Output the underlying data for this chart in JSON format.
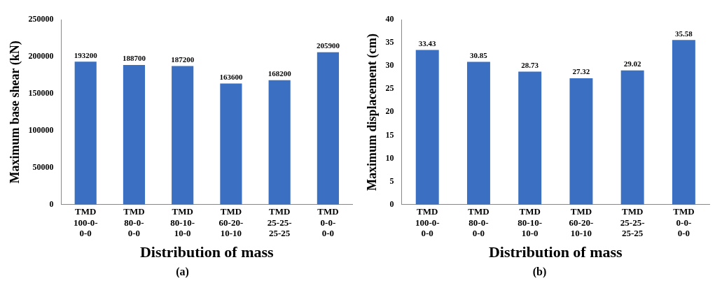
{
  "chart_data": [
    {
      "type": "bar",
      "xlabel": "Distribution of mass",
      "ylabel": "Maximum base shear (kN)",
      "categories": [
        "TMD\n100-0-\n0-0",
        "TMD\n80-0-\n0-0",
        "TMD\n80-10-\n10-0",
        "TMD\n60-20-\n10-10",
        "TMD\n25-25-\n25-25",
        "TMD\n0-0-\n0-0"
      ],
      "values": [
        193200,
        188700,
        187200,
        163600,
        168200,
        205900
      ],
      "color": "#3b6fc1",
      "ylim": [
        0,
        250000
      ],
      "yticks": [
        0,
        50000,
        100000,
        150000,
        200000,
        250000
      ],
      "grid": false,
      "legend": false,
      "data_labels": true,
      "annotations": [
        "(a)"
      ]
    },
    {
      "type": "bar",
      "xlabel": "Distribution of mass",
      "ylabel": "Maximum displacement (cm)",
      "categories": [
        "TMD\n100-0-\n0-0",
        "TMD\n80-0-\n0-0",
        "TMD\n80-10-\n10-0",
        "TMD\n60-20-\n10-10",
        "TMD\n25-25-\n25-25",
        "TMD\n0-0-\n0-0"
      ],
      "values": [
        33.43,
        30.85,
        28.73,
        27.32,
        29.02,
        35.58
      ],
      "color": "#3b6fc1",
      "ylim": [
        0,
        40
      ],
      "yticks": [
        0,
        5,
        10,
        15,
        20,
        25,
        30,
        35,
        40
      ],
      "grid": false,
      "legend": false,
      "data_labels": true,
      "annotations": [
        "(b)"
      ]
    }
  ]
}
